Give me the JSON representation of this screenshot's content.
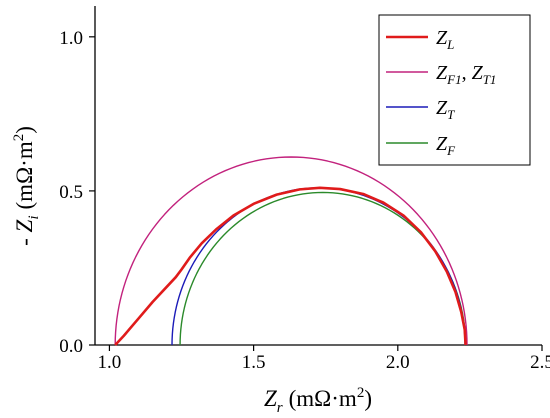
{
  "chart_data": {
    "type": "line",
    "xlabel": {
      "var": "Z",
      "sub": "r",
      "unit": "(mΩ·m",
      "sup": "2",
      "close": ")"
    },
    "ylabel": {
      "pre": "- ",
      "var": "Z",
      "sub": "i",
      "unit": "(mΩ·m",
      "sup": "2",
      "close": ")"
    },
    "xlim": [
      0.95,
      2.5
    ],
    "ylim": [
      0.0,
      1.1
    ],
    "xticks": [
      "1.0",
      "1.5",
      "2.0",
      "2.5"
    ],
    "yticks": [
      "0.0",
      "0.5",
      "1.0"
    ],
    "legend_position": "top-right",
    "grid": false,
    "series": [
      {
        "legend": {
          "main": "Z",
          "sub": "L",
          "sep": "",
          "main2": "",
          "sub2": ""
        },
        "color": "#e01b1b",
        "width": 2.6,
        "points": [
          [
            1.02,
            0.0
          ],
          [
            1.05,
            0.03
          ],
          [
            1.1,
            0.085
          ],
          [
            1.15,
            0.14
          ],
          [
            1.2,
            0.19
          ],
          [
            1.23,
            0.22
          ],
          [
            1.25,
            0.245
          ],
          [
            1.28,
            0.285
          ],
          [
            1.32,
            0.33
          ],
          [
            1.37,
            0.375
          ],
          [
            1.43,
            0.42
          ],
          [
            1.5,
            0.458
          ],
          [
            1.58,
            0.488
          ],
          [
            1.66,
            0.505
          ],
          [
            1.73,
            0.51
          ],
          [
            1.8,
            0.506
          ],
          [
            1.88,
            0.49
          ],
          [
            1.95,
            0.462
          ],
          [
            2.02,
            0.42
          ],
          [
            2.08,
            0.366
          ],
          [
            2.13,
            0.304
          ],
          [
            2.17,
            0.238
          ],
          [
            2.2,
            0.172
          ],
          [
            2.22,
            0.107
          ],
          [
            2.232,
            0.05
          ],
          [
            2.235,
            0.0
          ]
        ]
      },
      {
        "legend": {
          "main": "Z",
          "sub": "F1",
          "sep": ", ",
          "main2": "Z",
          "sub2": "T1"
        },
        "color": "#c2227d",
        "width": 1.4,
        "center": [
          1.63,
          0.0
        ],
        "radius": 0.61,
        "ry": 0.61
      },
      {
        "legend": {
          "main": "Z",
          "sub": "T",
          "sep": "",
          "main2": "",
          "sub2": ""
        },
        "color": "#1b1bb8",
        "width": 1.4,
        "center": [
          1.725,
          0.0
        ],
        "radius": 0.508,
        "ry": 0.51
      },
      {
        "legend": {
          "main": "Z",
          "sub": "F",
          "sep": "",
          "main2": "",
          "sub2": ""
        },
        "color": "#2b8a2b",
        "width": 1.4,
        "center": [
          1.74,
          0.0
        ],
        "radius": 0.495,
        "ry": 0.495
      }
    ]
  }
}
